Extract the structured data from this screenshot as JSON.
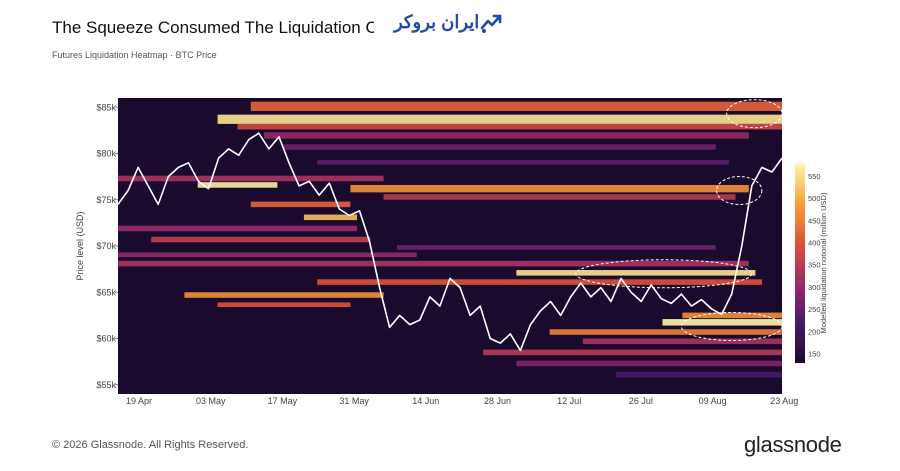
{
  "header": {
    "title": "The Squeeze Consumed The Liquidation Clu",
    "subtitle": "Futures Liquidation Heatmap · BTC Price",
    "watermark": "ایران بروکر"
  },
  "footer": {
    "copyright": "© 2026 Glassnode. All Rights Reserved.",
    "brand": "glassnode"
  },
  "colors": {
    "accent": "#1f4ea1",
    "price_line": "#ffffff",
    "background_dark": "#1a0b2e"
  },
  "chart_data": {
    "type": "heatmap",
    "title": "The Squeeze Consumed The Liquidation Clu",
    "subtitle": "Futures Liquidation Heatmap · BTC Price",
    "ylabel": "Price level (USD)",
    "ylim": [
      54000,
      86000
    ],
    "y_ticks": [
      {
        "value": 85000,
        "label": "$85k"
      },
      {
        "value": 80000,
        "label": "$80k"
      },
      {
        "value": 75000,
        "label": "$75k"
      },
      {
        "value": 70000,
        "label": "$70k"
      },
      {
        "value": 65000,
        "label": "$65k"
      },
      {
        "value": 60000,
        "label": "$60k"
      },
      {
        "value": 55000,
        "label": "$55k"
      }
    ],
    "x_ticks": [
      "19 Apr",
      "03 May",
      "17 May",
      "31 May",
      "14 Jun",
      "28 Jun",
      "12 Jul",
      "26 Jul",
      "09 Aug",
      "23 Aug"
    ],
    "colorbar": {
      "title": "Modelled liquidation notional (million USD)",
      "min": 130,
      "max": 580,
      "ticks": [
        550,
        500,
        450,
        400,
        350,
        300,
        250,
        200,
        150
      ]
    },
    "liquidation_bands": [
      {
        "low": 84600,
        "high": 85600,
        "start_idx": 20,
        "end_idx": 100,
        "value": 420
      },
      {
        "low": 83200,
        "high": 84200,
        "start_idx": 15,
        "end_idx": 100,
        "value": 560
      },
      {
        "low": 82600,
        "high": 83200,
        "start_idx": 18,
        "end_idx": 100,
        "value": 380
      },
      {
        "low": 81600,
        "high": 82300,
        "start_idx": 22,
        "end_idx": 95,
        "value": 300
      },
      {
        "low": 80400,
        "high": 81000,
        "start_idx": 25,
        "end_idx": 90,
        "value": 260
      },
      {
        "low": 78800,
        "high": 79300,
        "start_idx": 30,
        "end_idx": 92,
        "value": 240
      },
      {
        "low": 77000,
        "high": 77600,
        "start_idx": 0,
        "end_idx": 40,
        "value": 330
      },
      {
        "low": 76300,
        "high": 76900,
        "start_idx": 12,
        "end_idx": 24,
        "value": 570
      },
      {
        "low": 75800,
        "high": 76600,
        "start_idx": 35,
        "end_idx": 95,
        "value": 470
      },
      {
        "low": 75000,
        "high": 75600,
        "start_idx": 40,
        "end_idx": 93,
        "value": 350
      },
      {
        "low": 74200,
        "high": 74800,
        "start_idx": 20,
        "end_idx": 35,
        "value": 420
      },
      {
        "low": 72800,
        "high": 73400,
        "start_idx": 28,
        "end_idx": 36,
        "value": 520
      },
      {
        "low": 71600,
        "high": 72200,
        "start_idx": 0,
        "end_idx": 36,
        "value": 310
      },
      {
        "low": 70400,
        "high": 71000,
        "start_idx": 5,
        "end_idx": 38,
        "value": 360
      },
      {
        "low": 69600,
        "high": 70100,
        "start_idx": 42,
        "end_idx": 90,
        "value": 260
      },
      {
        "low": 68800,
        "high": 69300,
        "start_idx": 0,
        "end_idx": 45,
        "value": 300
      },
      {
        "low": 67800,
        "high": 68400,
        "start_idx": 0,
        "end_idx": 95,
        "value": 330
      },
      {
        "low": 66800,
        "high": 67400,
        "start_idx": 60,
        "end_idx": 96,
        "value": 560
      },
      {
        "low": 65800,
        "high": 66400,
        "start_idx": 30,
        "end_idx": 97,
        "value": 400
      },
      {
        "low": 64400,
        "high": 65000,
        "start_idx": 10,
        "end_idx": 40,
        "value": 470
      },
      {
        "low": 63400,
        "high": 63900,
        "start_idx": 15,
        "end_idx": 35,
        "value": 400
      },
      {
        "low": 62200,
        "high": 62800,
        "start_idx": 85,
        "end_idx": 100,
        "value": 470
      },
      {
        "low": 61400,
        "high": 62100,
        "start_idx": 82,
        "end_idx": 100,
        "value": 580
      },
      {
        "low": 60400,
        "high": 61000,
        "start_idx": 65,
        "end_idx": 100,
        "value": 450
      },
      {
        "low": 59400,
        "high": 60000,
        "start_idx": 70,
        "end_idx": 100,
        "value": 330
      },
      {
        "low": 58200,
        "high": 58800,
        "start_idx": 55,
        "end_idx": 100,
        "value": 350
      },
      {
        "low": 57000,
        "high": 57600,
        "start_idx": 60,
        "end_idx": 100,
        "value": 280
      },
      {
        "low": 55800,
        "high": 56400,
        "start_idx": 75,
        "end_idx": 100,
        "value": 220
      }
    ],
    "btc_price": [
      {
        "date": "2026-04-14",
        "value": 74500
      },
      {
        "date": "2026-04-16",
        "value": 76000
      },
      {
        "date": "2026-04-18",
        "value": 78500
      },
      {
        "date": "2026-04-20",
        "value": 76500
      },
      {
        "date": "2026-04-22",
        "value": 74500
      },
      {
        "date": "2026-04-24",
        "value": 77500
      },
      {
        "date": "2026-04-26",
        "value": 78500
      },
      {
        "date": "2026-04-28",
        "value": 79000
      },
      {
        "date": "2026-04-30",
        "value": 77000
      },
      {
        "date": "2026-05-02",
        "value": 76200
      },
      {
        "date": "2026-05-04",
        "value": 79500
      },
      {
        "date": "2026-05-06",
        "value": 80500
      },
      {
        "date": "2026-05-08",
        "value": 79800
      },
      {
        "date": "2026-05-10",
        "value": 81500
      },
      {
        "date": "2026-05-12",
        "value": 82200
      },
      {
        "date": "2026-05-14",
        "value": 80500
      },
      {
        "date": "2026-05-16",
        "value": 81800
      },
      {
        "date": "2026-05-18",
        "value": 79000
      },
      {
        "date": "2026-05-20",
        "value": 76500
      },
      {
        "date": "2026-05-22",
        "value": 77000
      },
      {
        "date": "2026-05-24",
        "value": 75500
      },
      {
        "date": "2026-05-26",
        "value": 76800
      },
      {
        "date": "2026-05-28",
        "value": 74000
      },
      {
        "date": "2026-05-30",
        "value": 73300
      },
      {
        "date": "2026-06-01",
        "value": 73800
      },
      {
        "date": "2026-06-03",
        "value": 70500
      },
      {
        "date": "2026-06-05",
        "value": 65500
      },
      {
        "date": "2026-06-07",
        "value": 61200
      },
      {
        "date": "2026-06-09",
        "value": 62500
      },
      {
        "date": "2026-06-11",
        "value": 61500
      },
      {
        "date": "2026-06-13",
        "value": 62000
      },
      {
        "date": "2026-06-15",
        "value": 64500
      },
      {
        "date": "2026-06-17",
        "value": 63500
      },
      {
        "date": "2026-06-19",
        "value": 66500
      },
      {
        "date": "2026-06-21",
        "value": 65500
      },
      {
        "date": "2026-06-23",
        "value": 62500
      },
      {
        "date": "2026-06-25",
        "value": 63500
      },
      {
        "date": "2026-06-27",
        "value": 60000
      },
      {
        "date": "2026-06-29",
        "value": 59500
      },
      {
        "date": "2026-07-01",
        "value": 60500
      },
      {
        "date": "2026-07-03",
        "value": 58700
      },
      {
        "date": "2026-07-05",
        "value": 61500
      },
      {
        "date": "2026-07-07",
        "value": 63000
      },
      {
        "date": "2026-07-09",
        "value": 64000
      },
      {
        "date": "2026-07-11",
        "value": 62500
      },
      {
        "date": "2026-07-13",
        "value": 64500
      },
      {
        "date": "2026-07-15",
        "value": 66000
      },
      {
        "date": "2026-07-17",
        "value": 64500
      },
      {
        "date": "2026-07-19",
        "value": 65500
      },
      {
        "date": "2026-07-21",
        "value": 64000
      },
      {
        "date": "2026-07-23",
        "value": 66500
      },
      {
        "date": "2026-07-25",
        "value": 65000
      },
      {
        "date": "2026-07-27",
        "value": 64000
      },
      {
        "date": "2026-07-29",
        "value": 65800
      },
      {
        "date": "2026-07-31",
        "value": 64300
      },
      {
        "date": "2026-08-02",
        "value": 63800
      },
      {
        "date": "2026-08-04",
        "value": 64800
      },
      {
        "date": "2026-08-06",
        "value": 63500
      },
      {
        "date": "2026-08-08",
        "value": 64200
      },
      {
        "date": "2026-08-10",
        "value": 63200
      },
      {
        "date": "2026-08-12",
        "value": 62600
      },
      {
        "date": "2026-08-14",
        "value": 64800
      },
      {
        "date": "2026-08-16",
        "value": 70000
      },
      {
        "date": "2026-08-18",
        "value": 76500
      },
      {
        "date": "2026-08-20",
        "value": 78500
      },
      {
        "date": "2026-08-22",
        "value": 78000
      },
      {
        "date": "2026-08-24",
        "value": 79500
      }
    ],
    "highlight_zones": [
      {
        "price": 84300,
        "start_date": "2026-08-13",
        "end_date": "2026-08-24"
      },
      {
        "price": 76000,
        "start_date": "2026-08-11",
        "end_date": "2026-08-20"
      },
      {
        "price": 67000,
        "start_date": "2026-07-14",
        "end_date": "2026-08-18"
      },
      {
        "price": 61300,
        "start_date": "2026-08-04",
        "end_date": "2026-08-24"
      }
    ]
  }
}
